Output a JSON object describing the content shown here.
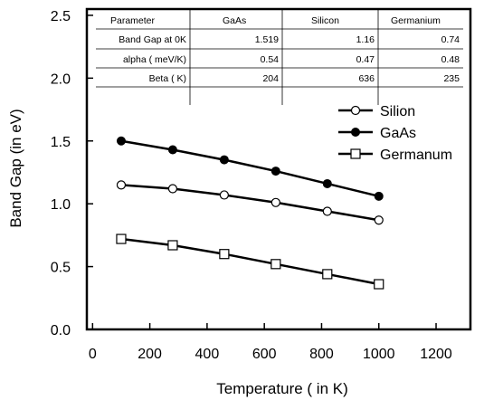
{
  "chart_data": {
    "type": "line",
    "xlabel": "Temperature ( in K)",
    "ylabel": "Band Gap (in eV)",
    "xlim": [
      -20,
      1320
    ],
    "ylim": [
      0.0,
      2.55
    ],
    "xticks": [
      0,
      200,
      400,
      600,
      800,
      1000,
      1200
    ],
    "xtick_labels": [
      "0",
      "200",
      "400",
      "600",
      "800",
      "1000",
      "1200"
    ],
    "yticks": [
      0.0,
      0.5,
      1.0,
      1.5,
      2.0,
      2.5
    ],
    "ytick_labels": [
      "0.0",
      "0.5",
      "1.0",
      "1.5",
      "2.0",
      "2.5"
    ],
    "grid": false,
    "legend_position": "top-right",
    "series": [
      {
        "name": "Silion",
        "marker": "open-circle",
        "x": [
          100,
          280,
          460,
          640,
          820,
          1000
        ],
        "y": [
          1.15,
          1.12,
          1.07,
          1.01,
          0.94,
          0.87
        ]
      },
      {
        "name": "GaAs",
        "marker": "filled-circle",
        "x": [
          100,
          280,
          460,
          640,
          820,
          1000
        ],
        "y": [
          1.5,
          1.43,
          1.35,
          1.26,
          1.16,
          1.06
        ]
      },
      {
        "name": "Germanum",
        "marker": "open-square",
        "x": [
          100,
          280,
          460,
          640,
          820,
          1000
        ],
        "y": [
          0.72,
          0.67,
          0.6,
          0.52,
          0.44,
          0.36
        ]
      }
    ],
    "table": {
      "header": [
        "Parameter",
        "GaAs",
        "Silicon",
        "Germanium"
      ],
      "rows": [
        [
          "Band Gap at 0K",
          "1.519",
          "1.16",
          "0.74"
        ],
        [
          "alpha ( meV/K)",
          "0.54",
          "0.47",
          "0.48"
        ],
        [
          "Beta ( K)",
          "204",
          "636",
          "235"
        ]
      ]
    }
  }
}
